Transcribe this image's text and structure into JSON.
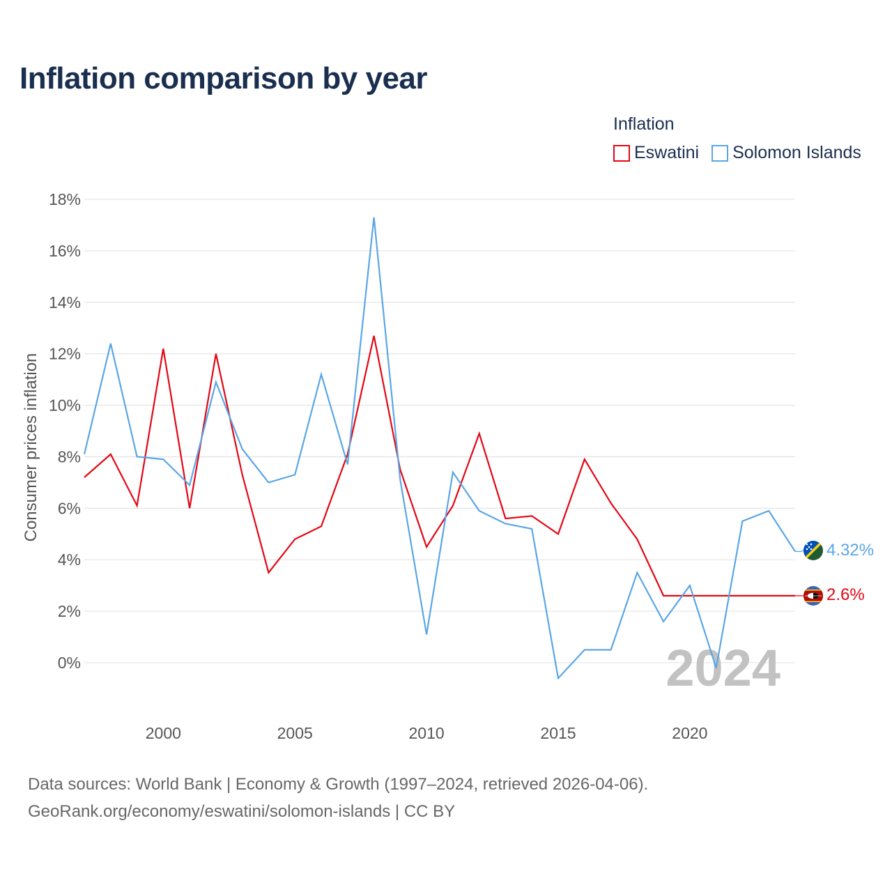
{
  "title": "Inflation comparison by year",
  "legend": {
    "title": "Inflation",
    "items": [
      {
        "name": "Eswatini",
        "color": "#e30613"
      },
      {
        "name": "Solomon Islands",
        "color": "#5aa6e6"
      }
    ]
  },
  "footer": {
    "line1": "Data sources: World Bank | Economy & Growth (1997–2024, retrieved 2026-04-06).",
    "line2": "GeoRank.org/economy/eswatini/solomon-islands | CC BY"
  },
  "chart_data": {
    "type": "line",
    "title": "Inflation comparison by year",
    "xlabel": "",
    "ylabel": "Consumer prices inflation",
    "x": [
      1997,
      1998,
      1999,
      2000,
      2001,
      2002,
      2003,
      2004,
      2005,
      2006,
      2007,
      2008,
      2009,
      2010,
      2011,
      2012,
      2013,
      2014,
      2015,
      2016,
      2017,
      2018,
      2019,
      2020,
      2021,
      2022,
      2023,
      2024
    ],
    "xlim": [
      1997,
      2024
    ],
    "ylim": [
      -1.8,
      18
    ],
    "xticks": [
      2000,
      2005,
      2010,
      2015,
      2020
    ],
    "xtick_labels": [
      "2000",
      "2005",
      "2010",
      "2015",
      "2020"
    ],
    "yticks": [
      0,
      2,
      4,
      6,
      8,
      10,
      12,
      14,
      16,
      18
    ],
    "ytick_labels": [
      "0%",
      "2%",
      "4%",
      "6%",
      "8%",
      "10%",
      "12%",
      "14%",
      "16%",
      "18%"
    ],
    "grid": true,
    "legend_position": "top-right",
    "year_label": "2024",
    "series": [
      {
        "name": "Eswatini",
        "color": "#e30613",
        "values": [
          7.2,
          8.1,
          6.1,
          12.2,
          6.0,
          12.0,
          7.3,
          3.5,
          4.8,
          5.3,
          8.1,
          12.7,
          7.5,
          4.5,
          6.1,
          8.9,
          5.6,
          5.7,
          5.0,
          7.9,
          6.2,
          4.8,
          2.6,
          2.6,
          2.6,
          2.6,
          2.6,
          2.6
        ],
        "end_label": "2.6%"
      },
      {
        "name": "Solomon Islands",
        "color": "#5aa6e6",
        "values": [
          8.1,
          12.4,
          8.0,
          7.9,
          6.9,
          10.9,
          8.3,
          7.0,
          7.3,
          11.2,
          7.7,
          17.3,
          7.1,
          1.1,
          7.4,
          5.9,
          5.4,
          5.2,
          -0.6,
          0.5,
          0.5,
          3.5,
          1.6,
          3.0,
          -0.2,
          5.5,
          5.9,
          4.32
        ],
        "end_label": "4.32%"
      }
    ]
  }
}
